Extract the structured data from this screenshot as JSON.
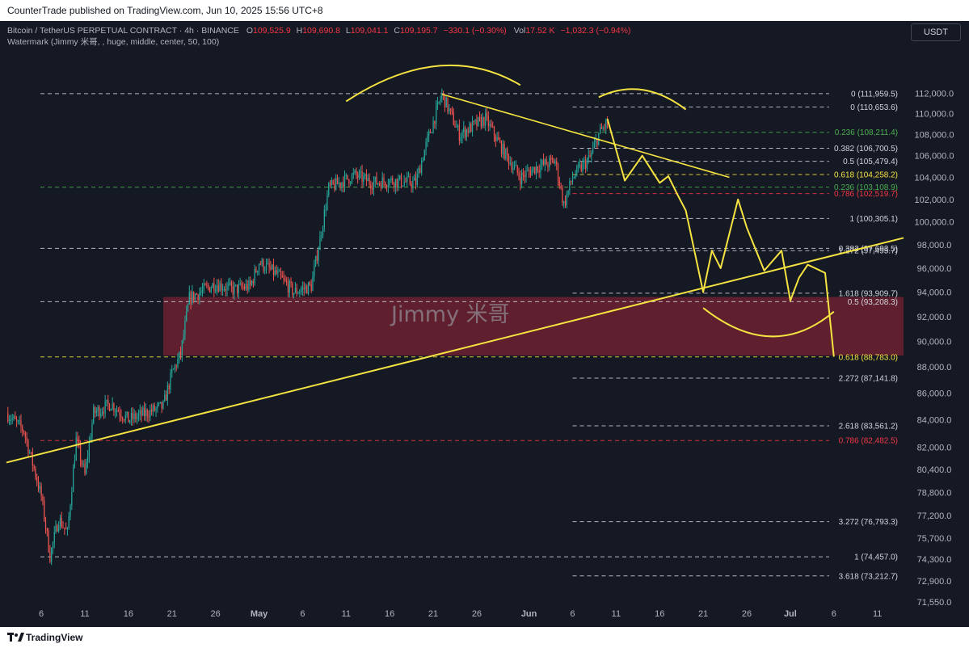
{
  "header": {
    "published_text": "CounterTrade published on TradingView.com, Jun 10, 2025 15:56 UTC+8"
  },
  "legend": {
    "symbol_line": "Bitcoin / TetherUS PERPETUAL CONTRACT · 4h · BINANCE",
    "o_label": "O",
    "o_value": "109,525.9",
    "h_label": "H",
    "h_value": "109,690.8",
    "l_label": "L",
    "l_value": "109,041.1",
    "c_label": "C",
    "c_value": "109,195.7",
    "change": "−330.1 (−0.30%)",
    "vol_label": "Vol",
    "vol_value": "17.52 K",
    "vol_change": "−1,032.3 (−0.94%)",
    "watermark_line": "Watermark (Jimmy 米哥, , huge, middle, center, 50, 100)"
  },
  "currency_badge": "USDT",
  "watermark_text": "Jimmy 米哥",
  "footer": {
    "brand": "TradingView"
  },
  "colors": {
    "background": "#151924",
    "candle_up": "#26a69a",
    "candle_down": "#ef5350",
    "drawing_yellow": "#f5e342",
    "zone_fill": "#7a2231",
    "fib_white": "#d1d4dc",
    "fib_green": "#4caf50",
    "fib_red": "#f23645",
    "fib_yellow": "#f5e342"
  },
  "chart_data": {
    "type": "candlestick",
    "symbol": "Bitcoin / TetherUS PERPETUAL CONTRACT",
    "timeframe": "4h",
    "exchange": "BINANCE",
    "y_axis": {
      "tick_labels": [
        "112,000.0",
        "110,000.0",
        "108,000.0",
        "106,000.0",
        "104,000.0",
        "102,000.0",
        "100,000.0",
        "98,000.0",
        "96,000.0",
        "94,000.0",
        "92,000.0",
        "90,000.0",
        "88,000.0",
        "86,000.0",
        "84,000.0",
        "82,000.0",
        "80,400.0",
        "78,800.0",
        "77,200.0",
        "75,700.0",
        "74,300.0",
        "72,900.0",
        "71,550.0"
      ],
      "scale": "log",
      "ylim": [
        71400,
        114200
      ]
    },
    "x_axis": {
      "tick_labels": [
        "6",
        "11",
        "16",
        "21",
        "26",
        "May",
        "6",
        "11",
        "16",
        "21",
        "26",
        "Jun",
        "6",
        "11",
        "16",
        "21",
        "26",
        "Jul",
        "6",
        "11"
      ],
      "range": [
        "2025-04-02",
        "2025-07-14"
      ]
    },
    "price_path": [
      {
        "date": "2025-04-02",
        "price": 84500
      },
      {
        "date": "2025-04-04",
        "price": 83200
      },
      {
        "date": "2025-04-06",
        "price": 78500
      },
      {
        "date": "2025-04-07",
        "price": 74500
      },
      {
        "date": "2025-04-08",
        "price": 77000
      },
      {
        "date": "2025-04-09",
        "price": 76000
      },
      {
        "date": "2025-04-10",
        "price": 82500
      },
      {
        "date": "2025-04-11",
        "price": 80000
      },
      {
        "date": "2025-04-12",
        "price": 84500
      },
      {
        "date": "2025-04-14",
        "price": 85200
      },
      {
        "date": "2025-04-16",
        "price": 84000
      },
      {
        "date": "2025-04-18",
        "price": 84500
      },
      {
        "date": "2025-04-20",
        "price": 85000
      },
      {
        "date": "2025-04-21",
        "price": 87500
      },
      {
        "date": "2025-04-22",
        "price": 89000
      },
      {
        "date": "2025-04-23",
        "price": 93500
      },
      {
        "date": "2025-04-26",
        "price": 94700
      },
      {
        "date": "2025-04-28",
        "price": 94200
      },
      {
        "date": "2025-04-30",
        "price": 94500
      },
      {
        "date": "2025-05-01",
        "price": 96500
      },
      {
        "date": "2025-05-03",
        "price": 95500
      },
      {
        "date": "2025-05-05",
        "price": 94000
      },
      {
        "date": "2025-05-07",
        "price": 94500
      },
      {
        "date": "2025-05-08",
        "price": 98500
      },
      {
        "date": "2025-05-09",
        "price": 103000
      },
      {
        "date": "2025-05-12",
        "price": 104200
      },
      {
        "date": "2025-05-14",
        "price": 103500
      },
      {
        "date": "2025-05-16",
        "price": 103700
      },
      {
        "date": "2025-05-19",
        "price": 103500
      },
      {
        "date": "2025-05-20",
        "price": 106500
      },
      {
        "date": "2025-05-22",
        "price": 111900
      },
      {
        "date": "2025-05-24",
        "price": 108000
      },
      {
        "date": "2025-05-27",
        "price": 109500
      },
      {
        "date": "2025-05-29",
        "price": 106500
      },
      {
        "date": "2025-05-31",
        "price": 104000
      },
      {
        "date": "2025-06-02",
        "price": 105000
      },
      {
        "date": "2025-06-04",
        "price": 105500
      },
      {
        "date": "2025-06-05",
        "price": 101500
      },
      {
        "date": "2025-06-06",
        "price": 104000
      },
      {
        "date": "2025-06-08",
        "price": 105800
      },
      {
        "date": "2025-06-09",
        "price": 108000
      },
      {
        "date": "2025-06-10",
        "price": 109200
      }
    ],
    "fib_levels": [
      {
        "label": "0 (111,959.5)",
        "price": 111959.5,
        "color": "white"
      },
      {
        "label": "0 (110,653.6)",
        "price": 110653.6,
        "color": "white"
      },
      {
        "label": "0.236 (108,211.4)",
        "price": 108211.4,
        "color": "green"
      },
      {
        "label": "0.382 (106,700.5)",
        "price": 106700.5,
        "color": "white"
      },
      {
        "label": "0.5 (105,479.4)",
        "price": 105479.4,
        "color": "white"
      },
      {
        "label": "0.618 (104,258.2)",
        "price": 104258.2,
        "color": "yellow"
      },
      {
        "label": "0.236 (103,108.9)",
        "price": 103108.9,
        "color": "green"
      },
      {
        "label": "0.786 (102,519.7)",
        "price": 102519.7,
        "color": "red"
      },
      {
        "label": "1 (100,305.1)",
        "price": 100305.1,
        "color": "white"
      },
      {
        "label": "0.382 (97,693.5)",
        "price": 97693.5,
        "color": "white"
      },
      {
        "label": "1.272 (97,495.7)",
        "price": 97495.7,
        "color": "white"
      },
      {
        "label": "1.618 (93,909.7)",
        "price": 93909.7,
        "color": "white"
      },
      {
        "label": "0.5 (93,208.3)",
        "price": 93208.3,
        "color": "white"
      },
      {
        "label": "0.618 (88,783.0)",
        "price": 88783.0,
        "color": "yellow"
      },
      {
        "label": "2.272 (87,141.8)",
        "price": 87141.8,
        "color": "white"
      },
      {
        "label": "2.618 (83,561.2)",
        "price": 83561.2,
        "color": "white"
      },
      {
        "label": "0.786 (82,482.5)",
        "price": 82482.5,
        "color": "red"
      },
      {
        "label": "3.272 (76,793.3)",
        "price": 76793.3,
        "color": "white"
      },
      {
        "label": "1 (74,457.0)",
        "price": 74457.0,
        "color": "white"
      },
      {
        "label": "3.618 (73,212.7)",
        "price": 73212.7,
        "color": "white"
      }
    ],
    "support_zone": {
      "from": "2025-04-20",
      "to": "2025-07-14",
      "upper": 93600,
      "lower": 88900
    },
    "projection_path": [
      {
        "date": "2025-06-10",
        "price": 109500
      },
      {
        "date": "2025-06-12",
        "price": 103700
      },
      {
        "date": "2025-06-14",
        "price": 106000
      },
      {
        "date": "2025-06-16",
        "price": 103500
      },
      {
        "date": "2025-06-17",
        "price": 104100
      },
      {
        "date": "2025-06-18",
        "price": 102500
      },
      {
        "date": "2025-06-19",
        "price": 101000
      },
      {
        "date": "2025-06-21",
        "price": 94000
      },
      {
        "date": "2025-06-22",
        "price": 97500
      },
      {
        "date": "2025-06-23",
        "price": 96000
      },
      {
        "date": "2025-06-25",
        "price": 102000
      },
      {
        "date": "2025-06-26",
        "price": 99500
      },
      {
        "date": "2025-06-28",
        "price": 95800
      },
      {
        "date": "2025-06-30",
        "price": 97500
      },
      {
        "date": "2025-07-01",
        "price": 93300
      },
      {
        "date": "2025-07-02",
        "price": 95200
      },
      {
        "date": "2025-07-03",
        "price": 96300
      },
      {
        "date": "2025-07-05",
        "price": 95600
      },
      {
        "date": "2025-07-06",
        "price": 88800
      }
    ]
  }
}
